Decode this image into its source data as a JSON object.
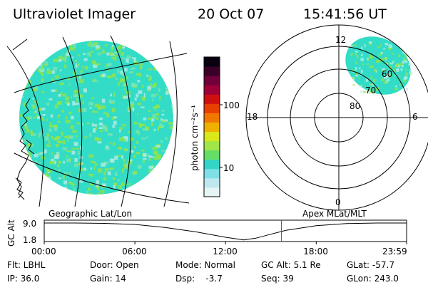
{
  "header": {
    "title": "Ultraviolet Imager",
    "date": "20 Oct 07",
    "time": "15:41:56 UT"
  },
  "colorbar": {
    "label": "photon cm⁻²s⁻¹",
    "ticks": [
      "100",
      "10"
    ],
    "colors": [
      "#e6f4f4",
      "#bfe8ee",
      "#7ee0e6",
      "#33d6c6",
      "#66dd66",
      "#a0e64b",
      "#d8e81a",
      "#f0b000",
      "#f07800",
      "#e84000",
      "#d01010",
      "#a0003a",
      "#70003a",
      "#3a002a",
      "#0a0010"
    ]
  },
  "left_panel": {
    "caption": "Geographic Lat/Lon",
    "map_color": "#33dcc6",
    "speckle_color": "#9be63c"
  },
  "right_panel": {
    "caption": "Apex MLat/MLT",
    "mlt_labels": [
      "12",
      "18",
      "6",
      "0"
    ],
    "lat_labels": [
      "60",
      "70",
      "80"
    ]
  },
  "timeline": {
    "ylabel": "GC Alt",
    "yticks": [
      "9.0",
      "1.8"
    ],
    "xticks": [
      "00:00",
      "06:00",
      "12:00",
      "18:00",
      "23:59"
    ],
    "marker_color": "#c82020"
  },
  "chart_data": {
    "type": "line",
    "title": "",
    "xlabel": "",
    "ylabel": "GC Alt",
    "ylim": [
      1.8,
      9.0
    ],
    "x_hours": [
      0,
      2,
      4,
      6,
      8,
      10,
      12,
      13.2,
      14,
      15,
      16,
      18,
      20,
      22,
      23.98
    ],
    "y": [
      9.0,
      9.0,
      8.85,
      8.4,
      7.1,
      5.3,
      3.0,
      1.85,
      2.6,
      4.3,
      5.9,
      7.9,
      8.8,
      9.0,
      9.0
    ],
    "marker_hour": 15.7
  },
  "footer": {
    "rows": [
      [
        "Flt: LBHL",
        "Door: Open",
        "Mode: Normal",
        "GC Alt: 5.1 Re",
        "GLat: -57.7"
      ],
      [
        "IP: 36.0",
        "Gain: 14",
        "Dsp:    -3.7",
        "Seq: 39",
        "GLon: 243.0"
      ]
    ]
  }
}
